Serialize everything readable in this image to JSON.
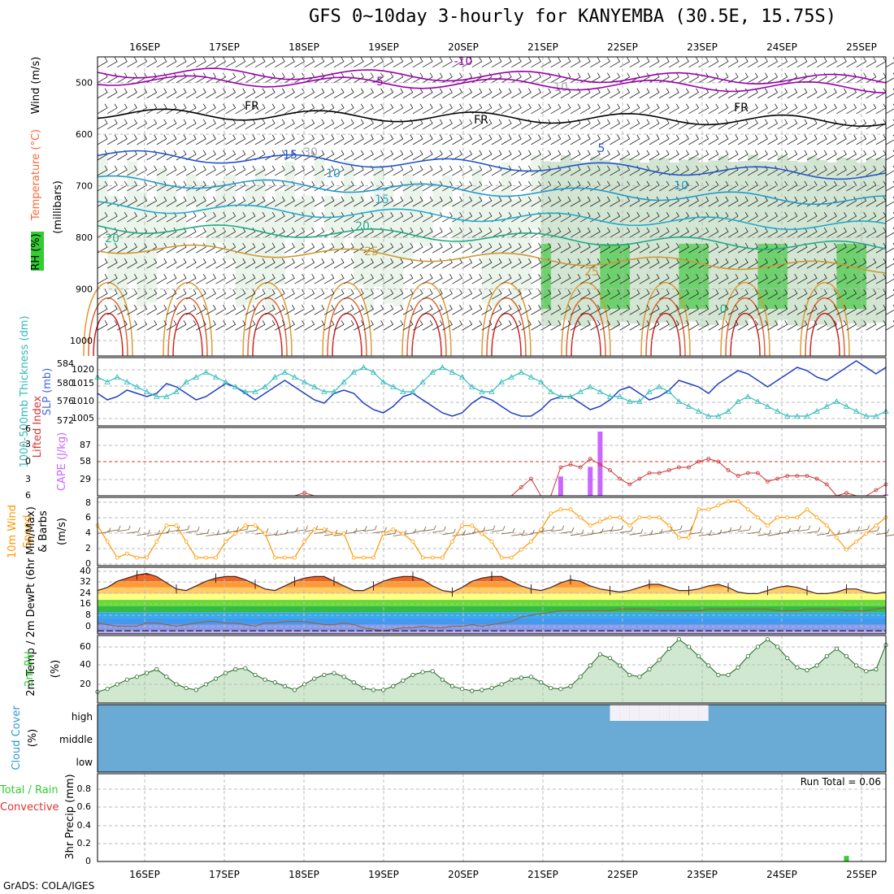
{
  "title": "GFS 0~10day 3-hourly for KANYEMBA (30.5E, 15.75S)",
  "credit": "GrADS: COLA/IGES",
  "colors": {
    "temp": "#ff6600",
    "rh": "#33cc33",
    "cloud": "#3399cc",
    "cape": "#cc66ff",
    "wind": "#ff9900",
    "slp": "#1f3fbf",
    "thick": "#33bbbb",
    "li": "#cc3333",
    "precip": "#33cc33"
  },
  "chart_data": {
    "type": "line",
    "date_labels": [
      "16SEP",
      "17SEP",
      "18SEP",
      "19SEP",
      "20SEP",
      "21SEP",
      "22SEP",
      "23SEP",
      "24SEP",
      "25SEP"
    ],
    "steps": 81,
    "panels": {
      "upper": {
        "ylabel_parts": [
          "RH (%)",
          "Temperature (°C)",
          "Wind (m/s)"
        ],
        "ylabel_unit": "(millibars)",
        "pressure_ticks": [
          "500",
          "600",
          "700",
          "800",
          "900",
          "1000"
        ],
        "contour_labels": [
          "-10",
          "-5",
          "FR",
          "FR",
          "FR",
          "5",
          "10",
          "10",
          "15",
          "15",
          "20",
          "20",
          "25",
          "25",
          "0",
          "10",
          "30"
        ]
      },
      "slp": {
        "ylabel_left": "1000-500mb Thickness (dm)",
        "ylabel_right": "SLP (mb)",
        "thick_ticks": [
          "584",
          "580",
          "576",
          "572"
        ],
        "slp_ticks": [
          "1020",
          "1015",
          "1010",
          "1005"
        ],
        "slp": [
          1012,
          1010,
          1011,
          1013,
          1012,
          1011,
          1012,
          1015,
          1014,
          1012,
          1010,
          1011,
          1013,
          1015,
          1014,
          1012,
          1010,
          1012,
          1014,
          1016,
          1014,
          1012,
          1010,
          1009,
          1012,
          1013,
          1012,
          1009,
          1007,
          1006,
          1008,
          1011,
          1012,
          1010,
          1008,
          1006,
          1005,
          1006,
          1009,
          1011,
          1010,
          1008,
          1006,
          1005,
          1005,
          1007,
          1010,
          1011,
          1011,
          1009,
          1007,
          1008,
          1010,
          1013,
          1014,
          1012,
          1010,
          1011,
          1013,
          1016,
          1015,
          1014,
          1012,
          1015,
          1017,
          1019,
          1018,
          1016,
          1014,
          1016,
          1018,
          1020,
          1019,
          1017,
          1016,
          1018,
          1020,
          1022,
          1020,
          1018,
          1020
        ],
        "thick": [
          581,
          580,
          581,
          580,
          579,
          578,
          577,
          577,
          578,
          580,
          581,
          582,
          581,
          580,
          579,
          578,
          578,
          579,
          581,
          582,
          581,
          580,
          579,
          578,
          578,
          580,
          582,
          583,
          582,
          580,
          579,
          578,
          578,
          580,
          582,
          583,
          582,
          581,
          579,
          578,
          578,
          580,
          581,
          582,
          581,
          580,
          578,
          577,
          577,
          578,
          579,
          578,
          577,
          577,
          576,
          576,
          578,
          579,
          578,
          576,
          575,
          574,
          573,
          573,
          574,
          576,
          577,
          576,
          575,
          574,
          573,
          573,
          573,
          574,
          575,
          576,
          575,
          574,
          573,
          573,
          574
        ]
      },
      "cape": {
        "ylabel_left": "Lifted Index",
        "ylabel_right": "CAPE (J/kg)",
        "li_ticks": [
          "-6",
          "-3",
          "0",
          "3",
          "6"
        ],
        "cape_ticks": [
          "87",
          "58",
          "29"
        ],
        "cape": [
          0,
          0,
          0,
          0,
          0,
          0,
          0,
          0,
          0,
          0,
          0,
          0,
          0,
          0,
          0,
          0,
          0,
          0,
          0,
          0,
          0,
          0,
          0,
          0,
          0,
          0,
          0,
          0,
          0,
          0,
          0,
          0,
          0,
          0,
          0,
          0,
          0,
          0,
          0,
          0,
          0,
          0,
          0,
          0,
          0,
          0,
          0,
          30,
          0,
          0,
          45,
          100,
          0,
          0,
          0,
          0,
          0,
          0,
          0,
          0,
          0,
          0,
          0,
          0,
          0,
          0,
          0,
          0,
          0,
          0,
          0,
          0,
          0,
          0,
          0,
          0,
          0,
          0,
          0,
          0,
          2
        ],
        "li": [
          6,
          6,
          6,
          6,
          6,
          6,
          6,
          6,
          6,
          6,
          6,
          6,
          6,
          6,
          6,
          6,
          6,
          6,
          6,
          6,
          6,
          5.5,
          6,
          6,
          6,
          6,
          6,
          6,
          6,
          6,
          6,
          6,
          6,
          6,
          6,
          6,
          6,
          6,
          6,
          6,
          6,
          6,
          6,
          4.5,
          3,
          6,
          6,
          1,
          0.5,
          1,
          -0.5,
          0.5,
          1.5,
          3,
          4,
          3,
          2,
          2,
          1.5,
          1,
          1,
          0,
          -0.5,
          0,
          1.5,
          2.5,
          2,
          2,
          3.5,
          3,
          2.5,
          2.5,
          2.5,
          3,
          4,
          6,
          5.5,
          6,
          6,
          5,
          4
        ]
      },
      "wind": {
        "ylabel_left": "10m Wind",
        "ylabel_mid": "Speed",
        "ylabel_right": "& Barbs",
        "ylabel_unit": "(m/s)",
        "ticks": [
          "8",
          "6",
          "4",
          "2",
          "0"
        ],
        "speed": [
          5,
          3,
          1,
          1.5,
          1,
          1,
          3,
          5,
          5,
          3,
          1,
          1,
          1,
          3,
          4,
          5,
          5,
          4,
          1,
          1,
          1,
          3,
          4.5,
          4.5,
          4,
          4,
          1,
          1,
          1,
          4,
          4.5,
          4,
          3,
          1,
          1,
          1,
          3,
          5,
          5,
          4,
          3,
          1,
          1,
          2,
          3,
          4.5,
          6.5,
          7,
          7,
          6,
          5,
          5.5,
          6,
          6,
          5,
          6,
          6,
          6,
          5,
          3.5,
          3.5,
          7,
          7,
          7.5,
          8,
          8,
          7,
          6,
          5,
          6,
          6,
          6,
          7,
          6,
          5,
          3.5,
          2,
          3,
          4,
          5,
          6
        ]
      },
      "temp": {
        "ylabel": "2m Temp / 2m DewPt (6hr Min/Max)",
        "ticks": [
          "40",
          "32",
          "24",
          "16",
          "8",
          "0"
        ],
        "tmax": [
          26,
          28,
          32,
          34,
          36,
          37,
          35,
          31,
          27,
          26,
          29,
          32,
          34,
          35,
          35,
          33,
          30,
          27,
          26,
          29,
          32,
          34,
          35,
          35,
          32,
          29,
          26,
          26,
          29,
          32,
          34,
          35,
          35,
          33,
          29,
          26,
          25,
          28,
          32,
          34,
          35,
          35,
          32,
          29,
          27,
          26,
          28,
          31,
          33,
          32,
          29,
          27,
          26,
          25,
          26,
          28,
          30,
          30,
          28,
          26,
          26,
          27,
          29,
          30,
          28,
          25,
          24,
          24,
          26,
          28,
          29,
          28,
          26,
          24,
          24,
          25,
          27,
          27,
          25,
          24,
          25
        ],
        "dewpt": [
          5,
          4,
          3,
          3,
          3,
          5,
          5,
          4,
          3,
          4,
          5,
          6,
          6,
          5,
          5,
          4,
          3,
          5,
          5,
          6,
          6,
          6,
          5,
          4,
          4,
          5,
          4,
          2,
          1,
          0,
          1,
          2,
          2,
          3,
          2,
          2,
          3,
          3,
          4,
          3,
          4,
          5,
          6,
          9,
          10,
          11,
          12,
          13,
          13,
          13,
          13,
          13,
          13,
          14,
          14,
          14,
          14,
          13,
          13,
          13,
          13,
          13,
          14,
          14,
          14,
          14,
          14,
          14,
          14,
          13,
          13,
          13,
          14,
          14,
          14,
          14,
          13,
          13,
          13,
          14,
          15
        ]
      },
      "rh": {
        "ylabel": "2m RH",
        "ylabel_unit": "(%)",
        "ticks": [
          "60",
          "40",
          "20"
        ],
        "values": [
          12,
          15,
          20,
          25,
          28,
          32,
          36,
          28,
          20,
          16,
          14,
          20,
          26,
          32,
          36,
          37,
          30,
          25,
          22,
          18,
          14,
          20,
          26,
          30,
          32,
          28,
          22,
          16,
          14,
          14,
          18,
          24,
          30,
          33,
          34,
          25,
          18,
          15,
          13,
          14,
          16,
          20,
          25,
          27,
          28,
          22,
          16,
          15,
          18,
          28,
          40,
          52,
          48,
          40,
          30,
          28,
          36,
          46,
          58,
          68,
          60,
          50,
          40,
          30,
          30,
          38,
          50,
          60,
          68,
          60,
          48,
          38,
          35,
          40,
          50,
          58,
          50,
          40,
          34,
          36,
          62
        ]
      },
      "cloud": {
        "ylabel": "Cloud Cover",
        "ylabel_unit": "(%)",
        "levels": [
          "high",
          "middle",
          "low"
        ]
      },
      "precip": {
        "ylabel_left": "Total / Rain",
        "ylabel_left2": "Convective",
        "ylabel_right": "3hr Precip (mm)",
        "ticks": [
          "0.8",
          "0.6",
          "0.4",
          "0.2",
          "0"
        ],
        "run_total": "Run Total = 0.06",
        "values": [
          0,
          0,
          0,
          0,
          0,
          0,
          0,
          0,
          0,
          0,
          0,
          0,
          0,
          0,
          0,
          0,
          0,
          0,
          0,
          0,
          0,
          0,
          0,
          0,
          0,
          0,
          0,
          0,
          0,
          0,
          0,
          0,
          0,
          0,
          0,
          0,
          0,
          0,
          0,
          0,
          0,
          0,
          0,
          0,
          0,
          0,
          0,
          0,
          0,
          0,
          0,
          0,
          0,
          0,
          0,
          0,
          0,
          0,
          0,
          0,
          0,
          0,
          0,
          0,
          0,
          0,
          0,
          0,
          0,
          0,
          0,
          0,
          0,
          0,
          0,
          0,
          0.06,
          0,
          0,
          0,
          0
        ]
      }
    }
  }
}
